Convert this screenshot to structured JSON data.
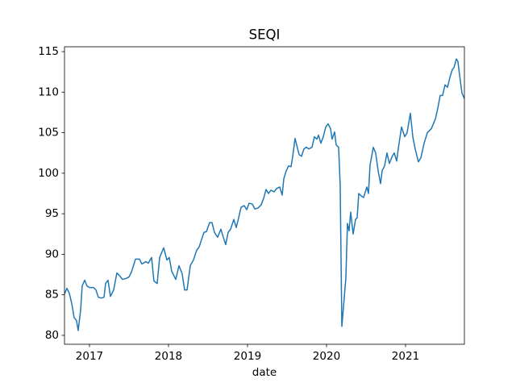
{
  "chart_data": {
    "type": "line",
    "title": "SEQI",
    "x_label": "date",
    "x": [
      2016.684,
      2016.714,
      2016.745,
      2016.776,
      2016.806,
      2016.837,
      2016.857,
      2016.888,
      2016.908,
      2016.939,
      2016.969,
      2017.0,
      2017.051,
      2017.082,
      2017.112,
      2017.153,
      2017.184,
      2017.204,
      2017.235,
      2017.265,
      2017.306,
      2017.347,
      2017.378,
      2017.418,
      2017.459,
      2017.5,
      2017.531,
      2017.582,
      2017.633,
      2017.663,
      2017.714,
      2017.745,
      2017.786,
      2017.816,
      2017.857,
      2017.888,
      2017.939,
      2017.98,
      2018.01,
      2018.041,
      2018.092,
      2018.133,
      2018.173,
      2018.204,
      2018.235,
      2018.276,
      2018.316,
      2018.357,
      2018.388,
      2018.408,
      2018.449,
      2018.48,
      2018.52,
      2018.551,
      2018.582,
      2018.622,
      2018.663,
      2018.694,
      2018.724,
      2018.755,
      2018.786,
      2018.827,
      2018.857,
      2018.888,
      2018.918,
      2018.959,
      2018.99,
      2019.02,
      2019.061,
      2019.092,
      2019.133,
      2019.173,
      2019.204,
      2019.235,
      2019.265,
      2019.296,
      2019.337,
      2019.367,
      2019.408,
      2019.439,
      2019.459,
      2019.49,
      2019.52,
      2019.551,
      2019.571,
      2019.602,
      2019.622,
      2019.653,
      2019.684,
      2019.714,
      2019.745,
      2019.776,
      2019.816,
      2019.847,
      2019.878,
      2019.898,
      2019.929,
      2019.959,
      2019.99,
      2020.02,
      2020.051,
      2020.071,
      2020.102,
      2020.122,
      2020.153,
      2020.173,
      2020.194,
      2020.224,
      2020.245,
      2020.265,
      2020.286,
      2020.306,
      2020.337,
      2020.367,
      2020.388,
      2020.408,
      2020.439,
      2020.469,
      2020.51,
      2020.531,
      2020.551,
      2020.592,
      2020.622,
      2020.653,
      2020.684,
      2020.704,
      2020.735,
      2020.765,
      2020.796,
      2020.827,
      2020.857,
      2020.888,
      2020.908,
      2020.949,
      2020.99,
      2021.02,
      2021.061,
      2021.092,
      2021.122,
      2021.163,
      2021.194,
      2021.235,
      2021.276,
      2021.327,
      2021.378,
      2021.408,
      2021.439,
      2021.469,
      2021.5,
      2021.531,
      2021.561,
      2021.592,
      2021.612,
      2021.643,
      2021.663,
      2021.684,
      2021.714,
      2021.745
    ],
    "series": [
      {
        "name": "SEQI",
        "color": "#1f77b4",
        "values": [
          85.1,
          85.8,
          85.2,
          83.9,
          82.2,
          81.8,
          80.6,
          83.1,
          86.1,
          86.8,
          86.1,
          85.9,
          85.9,
          85.6,
          84.7,
          84.6,
          84.7,
          86.4,
          86.8,
          84.8,
          85.6,
          87.7,
          87.4,
          86.9,
          87.0,
          87.2,
          87.8,
          89.4,
          89.4,
          88.8,
          89.1,
          88.9,
          89.6,
          86.7,
          86.4,
          89.6,
          90.8,
          89.3,
          89.6,
          87.9,
          86.9,
          88.6,
          87.6,
          85.6,
          85.6,
          88.6,
          89.3,
          90.5,
          90.9,
          91.5,
          92.7,
          92.8,
          93.9,
          93.9,
          92.7,
          92.1,
          93.1,
          92.1,
          91.2,
          92.7,
          93.1,
          94.3,
          93.3,
          94.5,
          95.8,
          96.0,
          95.5,
          96.3,
          96.2,
          95.6,
          95.7,
          96.1,
          96.9,
          98.0,
          97.5,
          97.9,
          97.7,
          98.1,
          98.3,
          97.3,
          99.3,
          100.3,
          100.9,
          100.8,
          102.0,
          104.3,
          103.5,
          102.3,
          102.1,
          103.0,
          103.2,
          103.0,
          103.2,
          104.5,
          104.2,
          104.7,
          103.7,
          104.5,
          105.7,
          106.1,
          105.5,
          104.2,
          105.1,
          103.5,
          103.2,
          98.5,
          81.1,
          84.6,
          87.1,
          93.8,
          92.9,
          95.2,
          92.5,
          94.3,
          94.5,
          97.5,
          97.2,
          97.0,
          98.3,
          97.5,
          101.0,
          103.2,
          102.5,
          100.3,
          98.7,
          100.3,
          100.9,
          102.5,
          101.2,
          102.0,
          102.5,
          101.5,
          103.0,
          105.7,
          104.5,
          105.0,
          107.4,
          104.5,
          103.0,
          101.4,
          101.9,
          103.7,
          105.0,
          105.5,
          106.7,
          108.0,
          109.6,
          109.6,
          110.9,
          110.6,
          111.8,
          112.8,
          113.0,
          114.1,
          113.8,
          112.1,
          109.9,
          109.2
        ]
      }
    ],
    "xlim": [
      2016.684,
      2021.745
    ],
    "xticks": [
      2017,
      2018,
      2019,
      2020,
      2021
    ],
    "ylim": [
      78.9,
      115.6
    ],
    "yticks": [
      80,
      85,
      90,
      95,
      100,
      105,
      110,
      115
    ]
  }
}
